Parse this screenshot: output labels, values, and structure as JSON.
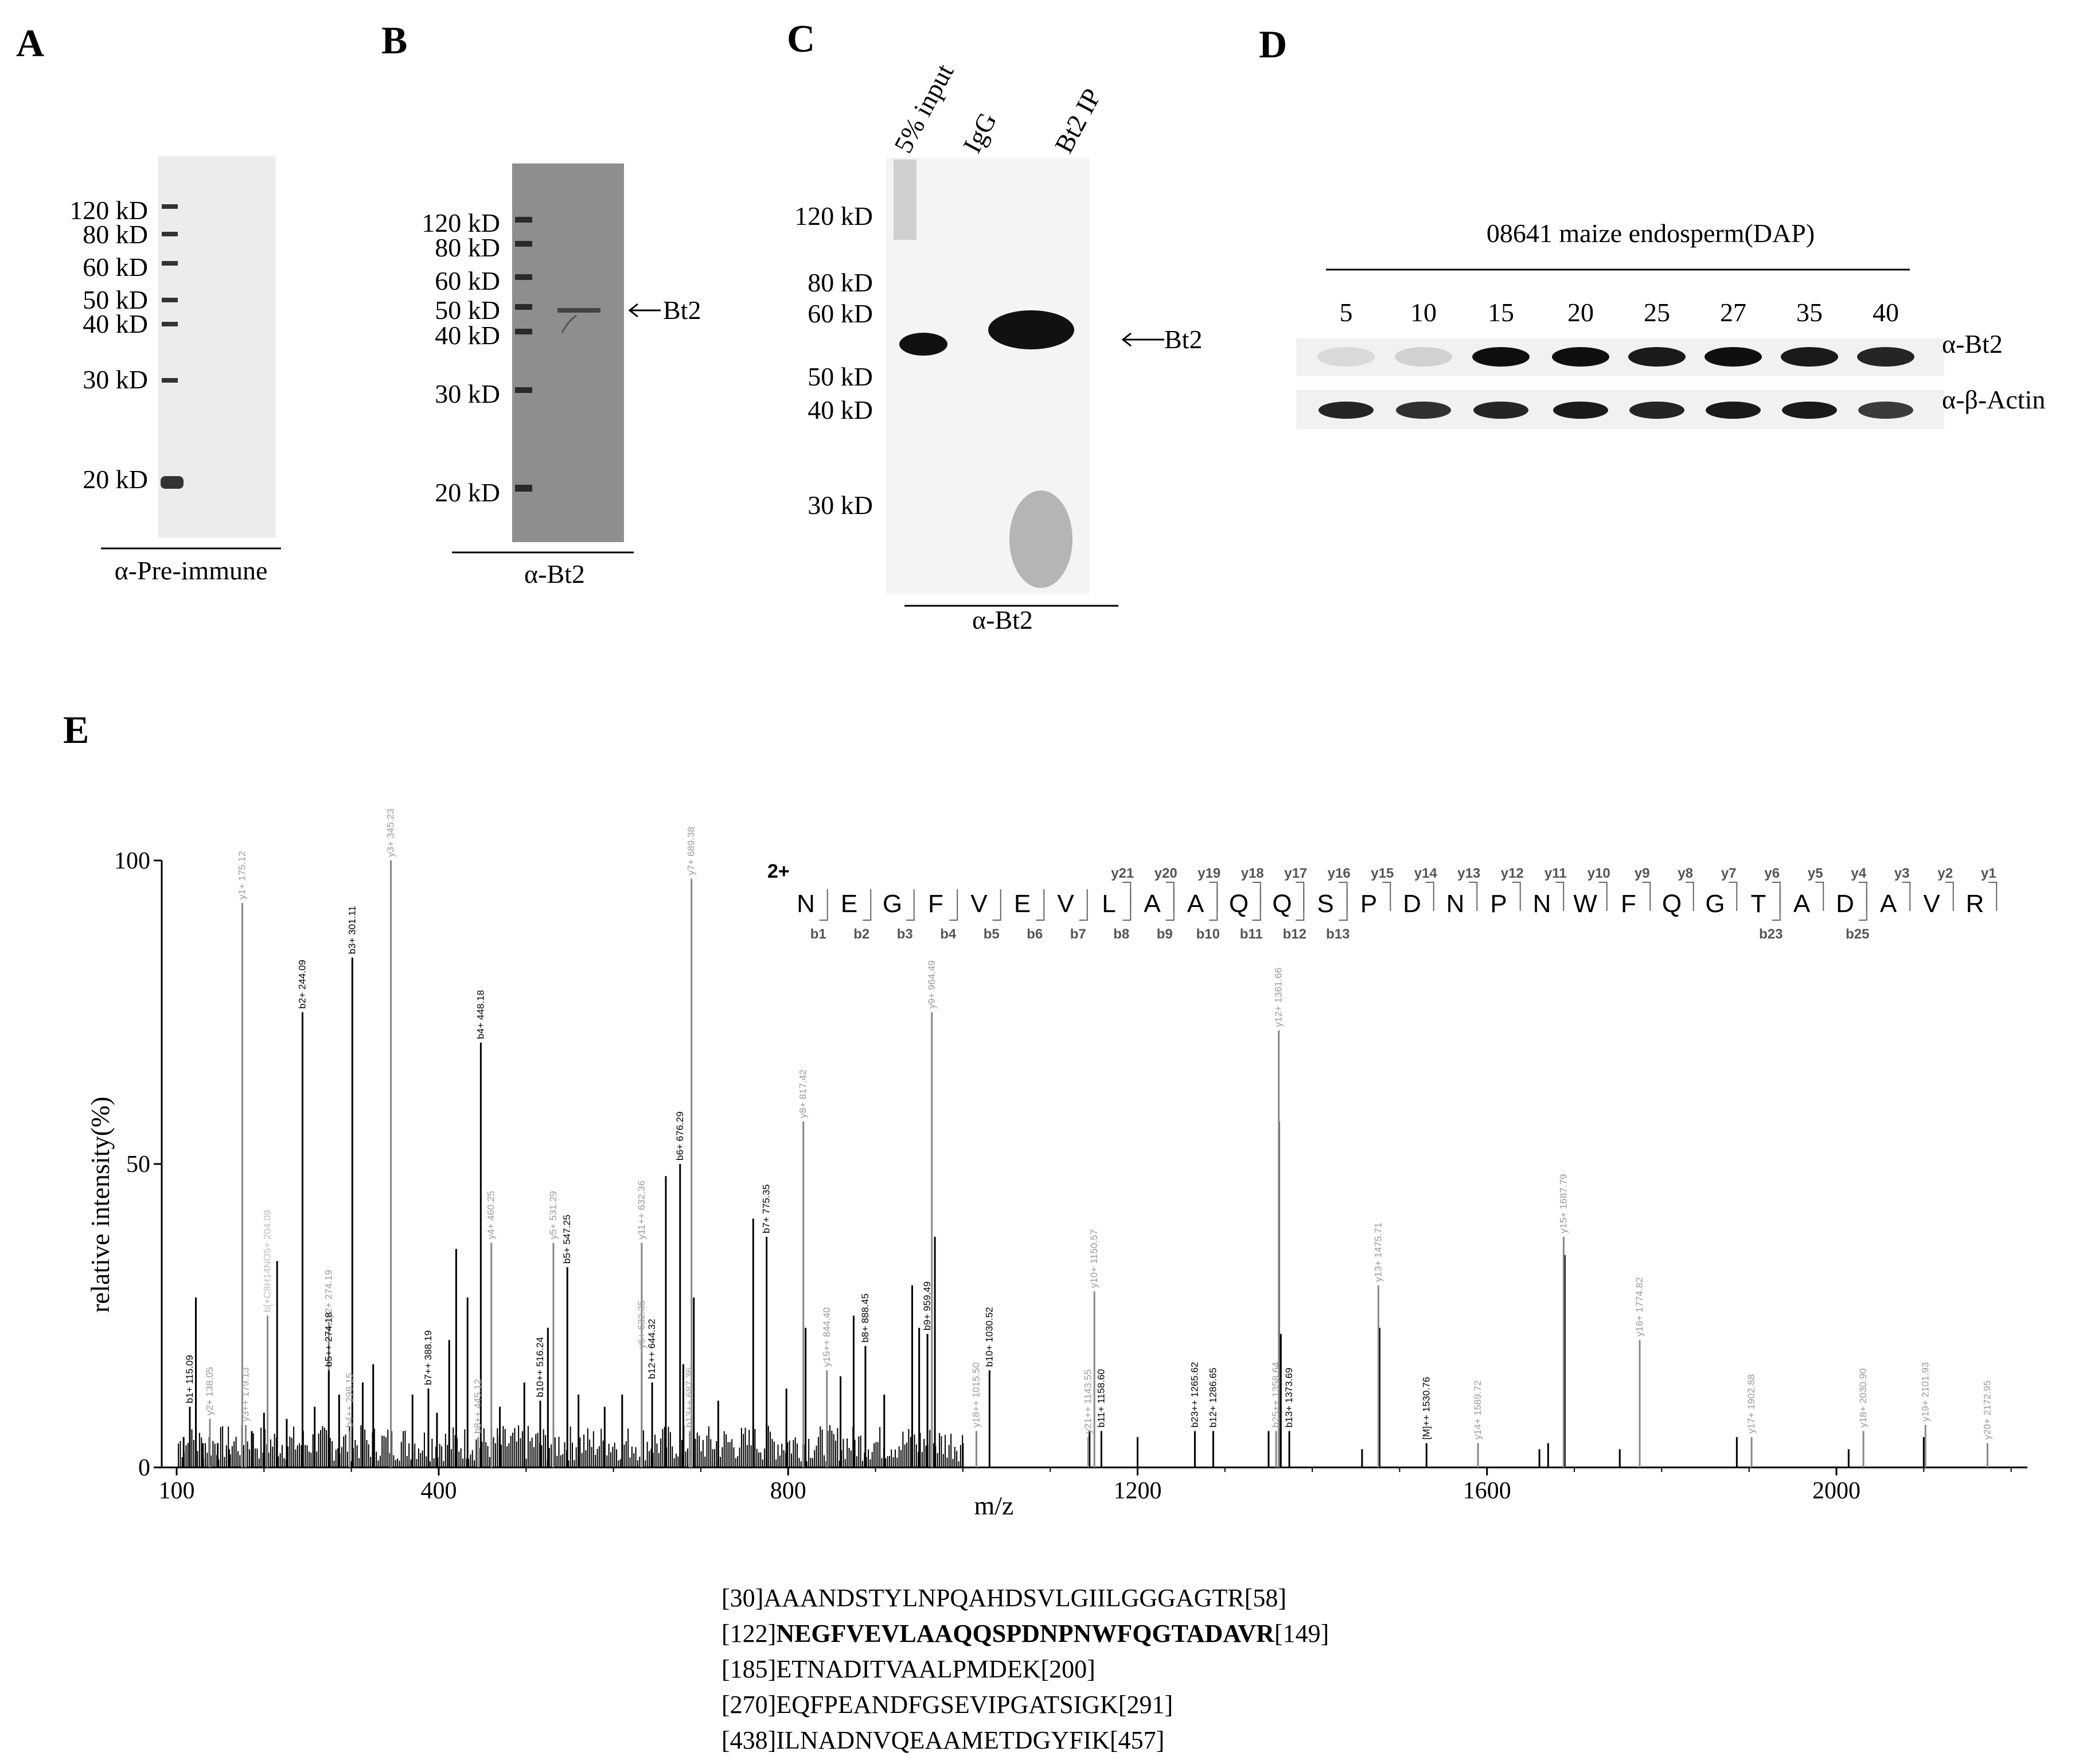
{
  "panels": {
    "A": {
      "letter": "A",
      "markers": [
        "120 kD",
        "80 kD",
        "60 kD",
        "50 kD",
        "40 kD",
        "30 kD",
        "20 kD"
      ],
      "caption": "α-Pre-immune"
    },
    "B": {
      "letter": "B",
      "markers": [
        "120 kD",
        "80 kD",
        "60 kD",
        "50 kD",
        "40 kD",
        "30 kD",
        "20 kD"
      ],
      "arrow_label": "Bt2",
      "caption": "α-Bt2"
    },
    "C": {
      "letter": "C",
      "lanes": [
        "5% input",
        "IgG",
        "Bt2 IP"
      ],
      "markers": [
        "120 kD",
        "80 kD",
        "60 kD",
        "50 kD",
        "40 kD",
        "30 kD"
      ],
      "arrow_label": "Bt2",
      "caption": "α-Bt2"
    },
    "D": {
      "letter": "D",
      "title": "08641  maize endosperm(DAP)",
      "lanes": [
        "5",
        "10",
        "15",
        "20",
        "25",
        "27",
        "35",
        "40"
      ],
      "row_labels": [
        "α-Bt2",
        "α-β-Actin"
      ],
      "band_intensity": {
        "bt2": [
          0.08,
          0.12,
          1,
          1,
          0.95,
          1,
          0.95,
          0.9
        ],
        "actin": [
          0.9,
          0.85,
          0.9,
          0.95,
          0.9,
          0.95,
          0.95,
          0.8
        ]
      }
    },
    "E": {
      "letter": "E",
      "charge": "2+",
      "sequence": [
        "N",
        "E",
        "G",
        "F",
        "V",
        "E",
        "V",
        "L",
        "A",
        "A",
        "Q",
        "Q",
        "S",
        "P",
        "D",
        "N",
        "P",
        "N",
        "W",
        "F",
        "Q",
        "G",
        "T",
        "A",
        "D",
        "A",
        "V",
        "R"
      ],
      "y_ions": [
        "y21",
        "y20",
        "y19",
        "y18",
        "y17",
        "y16",
        "y15",
        "y14",
        "y13",
        "y12",
        "y11",
        "y10",
        "y9",
        "y8",
        "y7",
        "y6",
        "y5",
        "y4",
        "y3",
        "y2",
        "y1"
      ],
      "b_ions": [
        "b1",
        "b2",
        "b3",
        "b4",
        "b5",
        "b6",
        "b7",
        "b8",
        "b9",
        "b10",
        "b11",
        "b12",
        "b13",
        "b23",
        "b25"
      ],
      "peptides": [
        {
          "pre": "[30]",
          "seq": "AAANDSTYLNPQAHDSVLGIILGGGAGTR",
          "post": "[58]",
          "bold": false
        },
        {
          "pre": "[122]",
          "seq": "NEGFVEVLAAQQSPDNPNWFQGTADAVR",
          "post": "[149]",
          "bold": true
        },
        {
          "pre": "[185]",
          "seq": "ETNADITVAALPMDEK",
          "post": "[200]",
          "bold": false
        },
        {
          "pre": "[270]",
          "seq": "EQFPEANDFGSEVIPGATSIGK",
          "post": "[291]",
          "bold": false
        },
        {
          "pre": "[438]",
          "seq": "ILNADNVQEAAMETDGYFIK",
          "post": "[457]",
          "bold": false
        }
      ]
    }
  },
  "chart_data": {
    "type": "bar",
    "title": "",
    "xlabel": "m/z",
    "ylabel": "relative intensity(%)",
    "xlim": [
      100,
      2220
    ],
    "ylim": [
      0,
      100
    ],
    "xticks": [
      100,
      400,
      800,
      1200,
      1600,
      2000
    ],
    "yticks": [
      0,
      50,
      100
    ],
    "labeled_peaks": [
      {
        "mz": 115.09,
        "i": 10,
        "label": "b1+ 115.09",
        "color": "#000"
      },
      {
        "mz": 138.05,
        "i": 8,
        "label": "y2+ 138.05",
        "color": "#999"
      },
      {
        "mz": 175.12,
        "i": 93,
        "label": "y1+ 175.12",
        "color": "#999"
      },
      {
        "mz": 179.13,
        "i": 7,
        "label": "y3++ 179.13",
        "color": "#999"
      },
      {
        "mz": 204.09,
        "i": 25,
        "label": "b[+C8H14NO5+ 204.09",
        "color": "#bbb"
      },
      {
        "mz": 244.09,
        "i": 75,
        "label": "b2+ 244.09",
        "color": "#000"
      },
      {
        "mz": 274.19,
        "i": 24,
        "label": "y2+ 274.19",
        "color": "#999"
      },
      {
        "mz": 274.18,
        "i": 16,
        "label": "b5++ 274.18",
        "color": "#000"
      },
      {
        "mz": 298.15,
        "i": 6,
        "label": "b4++ 298.15",
        "color": "#999"
      },
      {
        "mz": 301.11,
        "i": 84,
        "label": "b3+ 301.11",
        "color": "#000"
      },
      {
        "mz": 345.23,
        "i": 100,
        "label": "y3+ 345.23",
        "color": "#999"
      },
      {
        "mz": 388.19,
        "i": 13,
        "label": "b7++ 388.19",
        "color": "#000"
      },
      {
        "mz": 445.12,
        "i": 5,
        "label": "b8++ 445.12",
        "color": "#999"
      },
      {
        "mz": 448.18,
        "i": 70,
        "label": "b4+ 448.18",
        "color": "#000"
      },
      {
        "mz": 460.25,
        "i": 37,
        "label": "y4+ 460.25",
        "color": "#999"
      },
      {
        "mz": 516.24,
        "i": 11,
        "label": "b10++ 516.24",
        "color": "#000"
      },
      {
        "mz": 531.29,
        "i": 37,
        "label": "y5+ 531.29",
        "color": "#999"
      },
      {
        "mz": 547.25,
        "i": 33,
        "label": "b5+ 547.25",
        "color": "#000"
      },
      {
        "mz": 632.35,
        "i": 19,
        "label": "y6+ 632.35",
        "color": "#999"
      },
      {
        "mz": 632.36,
        "i": 37,
        "label": "y11++ 632.36",
        "color": "#999"
      },
      {
        "mz": 644.32,
        "i": 14,
        "label": "b12++ 644.32",
        "color": "#000"
      },
      {
        "mz": 676.29,
        "i": 50,
        "label": "b6+ 676.29",
        "color": "#000"
      },
      {
        "mz": 687.36,
        "i": 6,
        "label": "b13++ 687.36",
        "color": "#999"
      },
      {
        "mz": 689.38,
        "i": 97,
        "label": "y7+ 689.38",
        "color": "#999"
      },
      {
        "mz": 775.35,
        "i": 38,
        "label": "b7+ 775.35",
        "color": "#000"
      },
      {
        "mz": 817.42,
        "i": 57,
        "label": "y8+ 817.42",
        "color": "#999"
      },
      {
        "mz": 844.4,
        "i": 16,
        "label": "y15++ 844.40",
        "color": "#999"
      },
      {
        "mz": 888.45,
        "i": 20,
        "label": "b8+ 888.45",
        "color": "#000"
      },
      {
        "mz": 959.49,
        "i": 22,
        "label": "b9+ 959.49",
        "color": "#000"
      },
      {
        "mz": 964.49,
        "i": 75,
        "label": "y9+ 964.49",
        "color": "#999"
      },
      {
        "mz": 1015.5,
        "i": 6,
        "label": "y18++ 1015.50",
        "color": "#999"
      },
      {
        "mz": 1030.52,
        "i": 16,
        "label": "b10+ 1030.52",
        "color": "#000"
      },
      {
        "mz": 1143.55,
        "i": 5,
        "label": "y21++ 1143.55",
        "color": "#999"
      },
      {
        "mz": 1150.57,
        "i": 29,
        "label": "y10+ 1150.57",
        "color": "#999"
      },
      {
        "mz": 1158.6,
        "i": 6,
        "label": "b11+ 1158.60",
        "color": "#000"
      },
      {
        "mz": 1265.62,
        "i": 6,
        "label": "b23++ 1265.62",
        "color": "#000"
      },
      {
        "mz": 1286.65,
        "i": 6,
        "label": "b12+ 1286.65",
        "color": "#000"
      },
      {
        "mz": 1358.64,
        "i": 6,
        "label": "b25++ 1358.64",
        "color": "#999"
      },
      {
        "mz": 1361.66,
        "i": 72,
        "label": "y12+ 1361.66",
        "color": "#999"
      },
      {
        "mz": 1373.69,
        "i": 6,
        "label": "b13+ 1373.69",
        "color": "#000"
      },
      {
        "mz": 1475.71,
        "i": 30,
        "label": "y13+ 1475.71",
        "color": "#999"
      },
      {
        "mz": 1530.76,
        "i": 4,
        "label": "[M]++ 1530.76",
        "color": "#000"
      },
      {
        "mz": 1589.72,
        "i": 4,
        "label": "y14+ 1589.72",
        "color": "#999"
      },
      {
        "mz": 1687.79,
        "i": 38,
        "label": "y15+ 1687.79",
        "color": "#999"
      },
      {
        "mz": 1774.82,
        "i": 21,
        "label": "y16+ 1774.82",
        "color": "#999"
      },
      {
        "mz": 1902.88,
        "i": 5,
        "label": "y17+ 1902.88",
        "color": "#999"
      },
      {
        "mz": 2030.9,
        "i": 6,
        "label": "y18+ 2030.90",
        "color": "#999"
      },
      {
        "mz": 2101.93,
        "i": 7,
        "label": "y19+ 2101.93",
        "color": "#999"
      },
      {
        "mz": 2172.95,
        "i": 4,
        "label": "y20+ 2172.95",
        "color": "#999"
      }
    ],
    "unlabeled_peaks": [
      {
        "mz": 108,
        "i": 5
      },
      {
        "mz": 122,
        "i": 28
      },
      {
        "mz": 130,
        "i": 4
      },
      {
        "mz": 147,
        "i": 4
      },
      {
        "mz": 160,
        "i": 3
      },
      {
        "mz": 186,
        "i": 6
      },
      {
        "mz": 200,
        "i": 9
      },
      {
        "mz": 215,
        "i": 34
      },
      {
        "mz": 226,
        "i": 8
      },
      {
        "mz": 258,
        "i": 10
      },
      {
        "mz": 286,
        "i": 12
      },
      {
        "mz": 313,
        "i": 14
      },
      {
        "mz": 325,
        "i": 17
      },
      {
        "mz": 370,
        "i": 12
      },
      {
        "mz": 398,
        "i": 9
      },
      {
        "mz": 412,
        "i": 21
      },
      {
        "mz": 420,
        "i": 36
      },
      {
        "mz": 433,
        "i": 28
      },
      {
        "mz": 470,
        "i": 10
      },
      {
        "mz": 498,
        "i": 14
      },
      {
        "mz": 525,
        "i": 23
      },
      {
        "mz": 560,
        "i": 12
      },
      {
        "mz": 590,
        "i": 10
      },
      {
        "mz": 610,
        "i": 12
      },
      {
        "mz": 660,
        "i": 48
      },
      {
        "mz": 680,
        "i": 17
      },
      {
        "mz": 692,
        "i": 28
      },
      {
        "mz": 720,
        "i": 11
      },
      {
        "mz": 760,
        "i": 41
      },
      {
        "mz": 798,
        "i": 13
      },
      {
        "mz": 820,
        "i": 23
      },
      {
        "mz": 860,
        "i": 15
      },
      {
        "mz": 875,
        "i": 25
      },
      {
        "mz": 910,
        "i": 12
      },
      {
        "mz": 942,
        "i": 30
      },
      {
        "mz": 950,
        "i": 23
      },
      {
        "mz": 968,
        "i": 38
      },
      {
        "mz": 1000,
        "i": 4
      },
      {
        "mz": 1145,
        "i": 6
      },
      {
        "mz": 1200,
        "i": 5
      },
      {
        "mz": 1350,
        "i": 6
      },
      {
        "mz": 1362,
        "i": 57
      },
      {
        "mz": 1364,
        "i": 22
      },
      {
        "mz": 1457,
        "i": 3
      },
      {
        "mz": 1477,
        "i": 23
      },
      {
        "mz": 1660,
        "i": 3
      },
      {
        "mz": 1670,
        "i": 4
      },
      {
        "mz": 1689,
        "i": 35
      },
      {
        "mz": 1752,
        "i": 3
      },
      {
        "mz": 1886,
        "i": 5
      },
      {
        "mz": 2014,
        "i": 3
      },
      {
        "mz": 2100,
        "i": 5
      }
    ]
  }
}
